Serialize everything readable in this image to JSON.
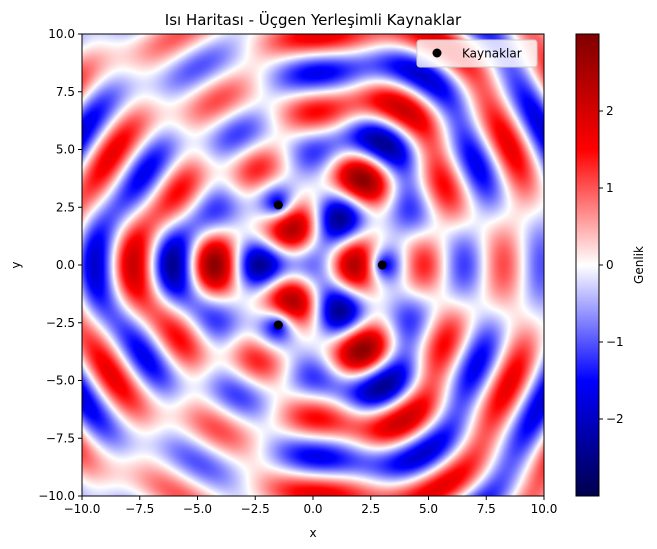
{
  "chart_data": {
    "type": "heatmap",
    "title": "Isı Haritası - Üçgen Yerleşimli Kaynaklar",
    "xlabel": "x",
    "ylabel": "y",
    "xlim": [
      -10,
      10
    ],
    "ylim": [
      -10,
      10
    ],
    "xticks": [
      "−10.0",
      "−7.5",
      "−5.0",
      "−2.5",
      "0.0",
      "2.5",
      "5.0",
      "7.5",
      "10.0"
    ],
    "yticks": [
      "−10.0",
      "−7.5",
      "−5.0",
      "−2.5",
      "0.0",
      "2.5",
      "5.0",
      "7.5",
      "10.0"
    ],
    "xtick_values": [
      -10,
      -7.5,
      -5,
      -2.5,
      0,
      2.5,
      5,
      7.5,
      10
    ],
    "ytick_values": [
      -10,
      -7.5,
      -5,
      -2.5,
      0,
      2.5,
      5,
      7.5,
      10
    ],
    "colormap": "seismic",
    "color_range": [
      -3,
      3
    ],
    "colorbar_label": "Genlik",
    "colorbar_ticks": [
      "−2",
      "−1",
      "0",
      "1",
      "2"
    ],
    "colorbar_tick_values": [
      -2,
      -1,
      0,
      1,
      2
    ],
    "wavenumber": 2,
    "sources": [
      {
        "x": 3.0,
        "y": 0.0
      },
      {
        "x": -1.5,
        "y": 2.6
      },
      {
        "x": -1.5,
        "y": -2.6
      }
    ],
    "legend": {
      "label": "Kaynaklar",
      "location": "upper right",
      "marker_color": "#000000"
    },
    "grid": false
  }
}
